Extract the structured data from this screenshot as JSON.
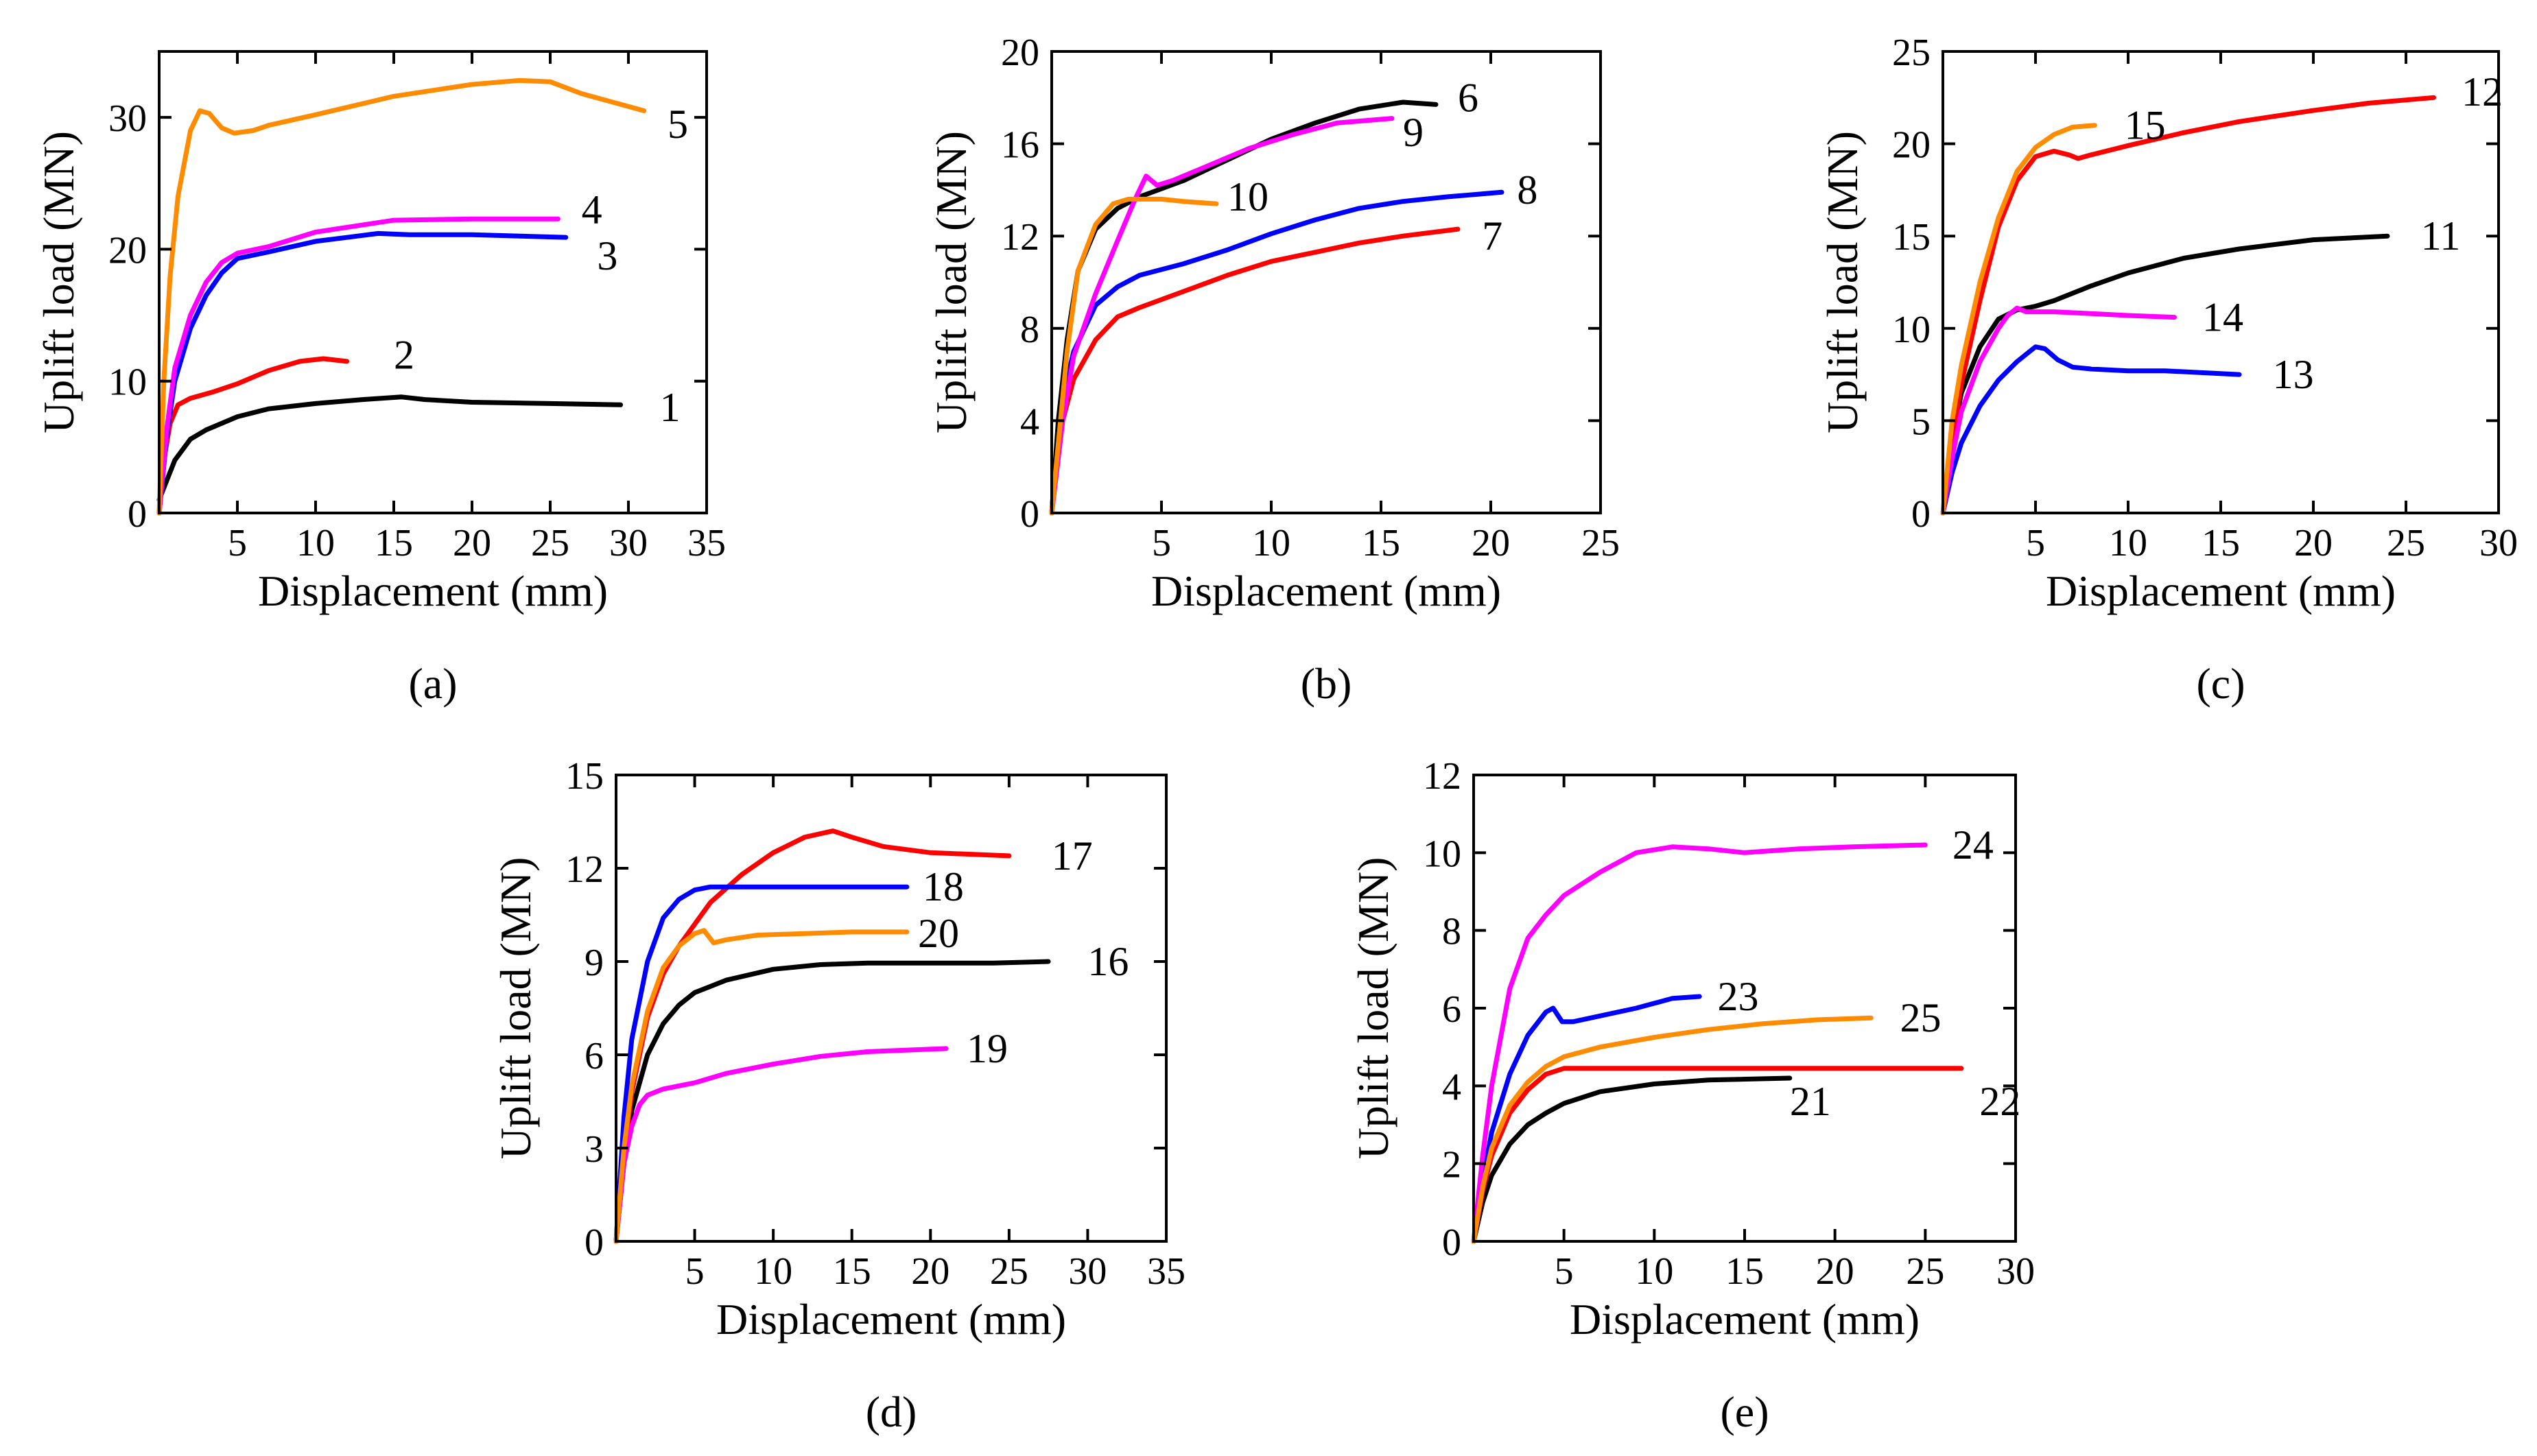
{
  "chart_data": [
    {
      "type": "line",
      "panel": "(a)",
      "xlabel": "Displacement (mm)",
      "ylabel": "Uplift load (MN)",
      "xlim": [
        0,
        35
      ],
      "ylim": [
        0,
        35
      ],
      "xticks": [
        5,
        10,
        15,
        20,
        25,
        30,
        35
      ],
      "yticks": [
        0,
        10,
        20,
        30
      ],
      "series": [
        {
          "name": "1",
          "color": "#000000",
          "x": [
            0,
            0.5,
            1,
            2,
            3,
            5,
            7,
            10,
            13,
            15.5,
            17,
            20,
            25,
            29.5
          ],
          "y": [
            1,
            2.5,
            4,
            5.6,
            6.3,
            7.3,
            7.9,
            8.3,
            8.6,
            8.8,
            8.6,
            8.4,
            8.3,
            8.2
          ]
        },
        {
          "name": "2",
          "color": "#ff0000",
          "x": [
            0,
            0.3,
            0.7,
            1.2,
            2,
            3.5,
            5,
            7,
            9,
            10.5,
            12
          ],
          "y": [
            0,
            4,
            6.8,
            8.2,
            8.7,
            9.2,
            9.8,
            10.8,
            11.5,
            11.7,
            11.5
          ]
        },
        {
          "name": "3",
          "color": "#0000ff",
          "x": [
            0,
            0.5,
            1,
            2,
            3,
            4,
            5,
            7,
            10,
            14,
            16,
            20,
            26
          ],
          "y": [
            0,
            6,
            10,
            14,
            16.5,
            18.2,
            19.3,
            19.8,
            20.6,
            21.2,
            21.1,
            21.1,
            20.9
          ]
        },
        {
          "name": "4",
          "color": "#ff00ff",
          "x": [
            0,
            0.5,
            1,
            2,
            3,
            4,
            5,
            7,
            10,
            15,
            20,
            25.5
          ],
          "y": [
            0,
            6.5,
            11,
            15,
            17.5,
            19,
            19.7,
            20.2,
            21.3,
            22.2,
            22.3,
            22.3
          ]
        },
        {
          "name": "5",
          "color": "#ff8c00",
          "x": [
            0,
            0.3,
            0.7,
            1.2,
            2,
            2.6,
            3.2,
            4,
            4.8,
            6,
            7,
            10,
            15,
            20,
            23,
            25,
            27,
            31
          ],
          "y": [
            0,
            10,
            18,
            24,
            29,
            30.5,
            30.3,
            29.2,
            28.8,
            29,
            29.4,
            30.2,
            31.6,
            32.5,
            32.8,
            32.7,
            31.8,
            30.5
          ]
        }
      ],
      "labels": [
        {
          "text": "1",
          "x": 32,
          "y": 8
        },
        {
          "text": "2",
          "x": 15,
          "y": 12
        },
        {
          "text": "3",
          "x": 28,
          "y": 19.5
        },
        {
          "text": "4",
          "x": 27,
          "y": 23
        },
        {
          "text": "5",
          "x": 32.5,
          "y": 29.5
        }
      ],
      "caption": "(a)"
    },
    {
      "type": "line",
      "panel": "(b)",
      "xlabel": "Displacement (mm)",
      "ylabel": "Uplift load (MN)",
      "xlim": [
        0,
        25
      ],
      "ylim": [
        0,
        20
      ],
      "xticks": [
        5,
        10,
        15,
        20,
        25
      ],
      "yticks": [
        0,
        4,
        8,
        12,
        16,
        20
      ],
      "series": [
        {
          "name": "6",
          "color": "#000000",
          "x": [
            0,
            0.3,
            0.7,
            1.2,
            2,
            3,
            4,
            6,
            8,
            10,
            12,
            14,
            16,
            17.5
          ],
          "y": [
            0,
            4,
            7.5,
            10.5,
            12.3,
            13.2,
            13.7,
            14.4,
            15.3,
            16.2,
            16.9,
            17.5,
            17.8,
            17.7
          ]
        },
        {
          "name": "7",
          "color": "#ff0000",
          "x": [
            0,
            0.5,
            1,
            2,
            3,
            4,
            6,
            8,
            10,
            12,
            14,
            16,
            18.5
          ],
          "y": [
            0,
            4,
            5.8,
            7.5,
            8.5,
            8.9,
            9.6,
            10.3,
            10.9,
            11.3,
            11.7,
            12,
            12.3
          ]
        },
        {
          "name": "8",
          "color": "#0000ff",
          "x": [
            0,
            0.5,
            1,
            2,
            3,
            4,
            6,
            8,
            10,
            12,
            14,
            16,
            18,
            20.5
          ],
          "y": [
            0,
            5,
            7,
            9,
            9.8,
            10.3,
            10.8,
            11.4,
            12.1,
            12.7,
            13.2,
            13.5,
            13.7,
            13.9
          ]
        },
        {
          "name": "9",
          "color": "#ff00ff",
          "x": [
            0,
            0.5,
            1,
            2,
            3,
            3.8,
            4.3,
            4.8,
            5.5,
            7,
            9,
            11,
            13,
            15.5
          ],
          "y": [
            0,
            4,
            6.8,
            9.5,
            11.8,
            13.6,
            14.6,
            14.2,
            14.4,
            15,
            15.8,
            16.4,
            16.9,
            17.1
          ]
        },
        {
          "name": "10",
          "color": "#ff8c00",
          "x": [
            0,
            0.3,
            0.7,
            1.2,
            2,
            2.8,
            3.5,
            5,
            6,
            7.5
          ],
          "y": [
            0,
            3,
            7,
            10.5,
            12.5,
            13.4,
            13.6,
            13.6,
            13.5,
            13.4
          ]
        }
      ],
      "labels": [
        {
          "text": "6",
          "x": 18.5,
          "y": 18
        },
        {
          "text": "7",
          "x": 19.6,
          "y": 12
        },
        {
          "text": "8",
          "x": 21.2,
          "y": 14
        },
        {
          "text": "9",
          "x": 16,
          "y": 16.5
        },
        {
          "text": "10",
          "x": 8,
          "y": 13.7
        }
      ],
      "caption": "(b)"
    },
    {
      "type": "line",
      "panel": "(c)",
      "xlabel": "Displacement (mm)",
      "ylabel": "Uplift load (MN)",
      "xlim": [
        0,
        30
      ],
      "ylim": [
        0,
        25
      ],
      "xticks": [
        5,
        10,
        15,
        20,
        25,
        30
      ],
      "yticks": [
        0,
        5,
        10,
        15,
        20,
        25
      ],
      "series": [
        {
          "name": "11",
          "color": "#000000",
          "x": [
            0,
            0.5,
            1,
            2,
            3,
            4,
            5,
            6,
            8,
            10,
            13,
            16,
            20,
            24
          ],
          "y": [
            0,
            4,
            6.5,
            9,
            10.5,
            11,
            11.2,
            11.5,
            12.3,
            13,
            13.8,
            14.3,
            14.8,
            15
          ]
        },
        {
          "name": "12",
          "color": "#ff0000",
          "x": [
            0,
            0.5,
            1,
            2,
            3,
            4,
            5,
            6,
            6.8,
            7.3,
            8,
            10,
            13,
            16,
            20,
            23,
            26.5
          ],
          "y": [
            0,
            4,
            7,
            11.5,
            15.5,
            18,
            19.3,
            19.6,
            19.4,
            19.2,
            19.4,
            19.9,
            20.6,
            21.2,
            21.8,
            22.2,
            22.5
          ]
        },
        {
          "name": "13",
          "color": "#0000ff",
          "x": [
            0,
            0.5,
            1,
            2,
            3,
            4,
            5,
            5.5,
            6.2,
            7,
            8,
            10,
            12,
            16
          ],
          "y": [
            0,
            2.2,
            3.8,
            5.8,
            7.2,
            8.2,
            9,
            8.9,
            8.3,
            7.9,
            7.8,
            7.7,
            7.7,
            7.5
          ]
        },
        {
          "name": "14",
          "color": "#ff00ff",
          "x": [
            0,
            0.5,
            1,
            2,
            3,
            3.5,
            4,
            4.5,
            6,
            8,
            10,
            12.5
          ],
          "y": [
            0,
            3,
            5.5,
            8.2,
            10,
            10.7,
            11.1,
            10.9,
            10.9,
            10.8,
            10.7,
            10.6
          ]
        },
        {
          "name": "15",
          "color": "#ff8c00",
          "x": [
            0,
            0.5,
            1,
            2,
            3,
            4,
            5,
            6,
            7,
            8.2
          ],
          "y": [
            0,
            5,
            8,
            12.5,
            16,
            18.5,
            19.8,
            20.5,
            20.9,
            21
          ]
        }
      ],
      "labels": [
        {
          "text": "11",
          "x": 25.8,
          "y": 15
        },
        {
          "text": "12",
          "x": 28,
          "y": 22.8
        },
        {
          "text": "13",
          "x": 17.8,
          "y": 7.5
        },
        {
          "text": "14",
          "x": 14,
          "y": 10.6
        },
        {
          "text": "15",
          "x": 9.8,
          "y": 21
        }
      ],
      "caption": "(c)"
    },
    {
      "type": "line",
      "panel": "(d)",
      "xlabel": "Displacement (mm)",
      "ylabel": "Uplift load (MN)",
      "xlim": [
        0,
        35
      ],
      "ylim": [
        0,
        15
      ],
      "xticks": [
        5,
        10,
        15,
        20,
        25,
        30,
        35
      ],
      "yticks": [
        0,
        3,
        6,
        9,
        12,
        15
      ],
      "series": [
        {
          "name": "16",
          "color": "#000000",
          "x": [
            0,
            0.5,
            1,
            2,
            3,
            4,
            5,
            7,
            10,
            13,
            16,
            20,
            24,
            27.5
          ],
          "y": [
            0,
            2.5,
            4.2,
            6,
            7,
            7.6,
            8,
            8.4,
            8.75,
            8.9,
            8.95,
            8.95,
            8.95,
            9
          ]
        },
        {
          "name": "17",
          "color": "#ff0000",
          "x": [
            0,
            0.5,
            1,
            2,
            3,
            4,
            6,
            8,
            10,
            12,
            13.8,
            15,
            17,
            20,
            25
          ],
          "y": [
            0,
            2.8,
            4.8,
            7.2,
            8.6,
            9.5,
            10.9,
            11.8,
            12.5,
            13,
            13.2,
            13,
            12.7,
            12.5,
            12.4
          ]
        },
        {
          "name": "18",
          "color": "#0000ff",
          "x": [
            0,
            0.5,
            1,
            2,
            3,
            4,
            5,
            6,
            8,
            12,
            16,
            18.5
          ],
          "y": [
            0,
            4,
            6.5,
            9,
            10.4,
            11,
            11.3,
            11.4,
            11.4,
            11.4,
            11.4,
            11.4
          ]
        },
        {
          "name": "19",
          "color": "#ff00ff",
          "x": [
            0,
            0.5,
            1,
            1.5,
            2,
            3,
            4,
            5,
            7,
            10,
            13,
            16,
            21
          ],
          "y": [
            0,
            2.5,
            3.7,
            4.4,
            4.7,
            4.9,
            5,
            5.1,
            5.4,
            5.7,
            5.95,
            6.1,
            6.2
          ]
        },
        {
          "name": "20",
          "color": "#ff8c00",
          "x": [
            0,
            0.5,
            1,
            2,
            3,
            4,
            5,
            5.6,
            6.2,
            7,
            9,
            12,
            15,
            18.5
          ],
          "y": [
            0,
            3,
            5,
            7.4,
            8.8,
            9.5,
            9.9,
            10,
            9.6,
            9.7,
            9.85,
            9.9,
            9.95,
            9.95
          ]
        }
      ],
      "labels": [
        {
          "text": "16",
          "x": 30,
          "y": 9
        },
        {
          "text": "17",
          "x": 27.7,
          "y": 12.4
        },
        {
          "text": "18",
          "x": 19.5,
          "y": 11.4
        },
        {
          "text": "19",
          "x": 22.3,
          "y": 6.2
        },
        {
          "text": "20",
          "x": 19.2,
          "y": 9.9
        }
      ],
      "caption": "(d)"
    },
    {
      "type": "line",
      "panel": "(e)",
      "xlabel": "Displacement (mm)",
      "ylabel": "Uplift load (MN)",
      "xlim": [
        0,
        30
      ],
      "ylim": [
        0,
        12
      ],
      "xticks": [
        5,
        10,
        15,
        20,
        25,
        30
      ],
      "yticks": [
        0,
        2,
        4,
        6,
        8,
        10,
        12
      ],
      "series": [
        {
          "name": "21",
          "color": "#000000",
          "x": [
            0,
            0.5,
            1,
            2,
            3,
            4,
            5,
            7,
            10,
            13,
            17.5
          ],
          "y": [
            0,
            1,
            1.7,
            2.5,
            3,
            3.3,
            3.55,
            3.85,
            4.05,
            4.15,
            4.2
          ]
        },
        {
          "name": "22",
          "color": "#ff0000",
          "x": [
            0,
            0.5,
            1,
            2,
            3,
            4,
            5,
            8,
            12,
            16,
            20,
            27
          ],
          "y": [
            0,
            1.3,
            2.2,
            3.3,
            3.9,
            4.3,
            4.45,
            4.45,
            4.45,
            4.45,
            4.45,
            4.45
          ]
        },
        {
          "name": "23",
          "color": "#0000ff",
          "x": [
            0,
            0.5,
            1,
            2,
            3,
            4,
            4.4,
            4.9,
            5.5,
            7,
            9,
            11,
            12.5
          ],
          "y": [
            0,
            1.6,
            2.8,
            4.3,
            5.3,
            5.9,
            6,
            5.65,
            5.65,
            5.8,
            6,
            6.25,
            6.3
          ]
        },
        {
          "name": "24",
          "color": "#ff00ff",
          "x": [
            0,
            0.5,
            1,
            2,
            3,
            4,
            5,
            7,
            9,
            11,
            13,
            15,
            18,
            21,
            25
          ],
          "y": [
            0,
            2.2,
            4,
            6.5,
            7.8,
            8.4,
            8.9,
            9.5,
            10,
            10.15,
            10.1,
            10,
            10.1,
            10.15,
            10.2
          ]
        },
        {
          "name": "25",
          "color": "#ff8c00",
          "x": [
            0,
            0.5,
            1,
            2,
            3,
            4,
            5,
            7,
            10,
            13,
            16,
            19,
            22
          ],
          "y": [
            0,
            1.4,
            2.4,
            3.5,
            4.1,
            4.5,
            4.75,
            5,
            5.25,
            5.45,
            5.6,
            5.7,
            5.75
          ]
        }
      ],
      "labels": [
        {
          "text": "21",
          "x": 17.5,
          "y": 3.6
        },
        {
          "text": "22",
          "x": 28,
          "y": 3.6
        },
        {
          "text": "23",
          "x": 13.5,
          "y": 6.3
        },
        {
          "text": "24",
          "x": 26.5,
          "y": 10.2
        },
        {
          "text": "25",
          "x": 23.6,
          "y": 5.75
        }
      ],
      "caption": "(e)"
    }
  ]
}
